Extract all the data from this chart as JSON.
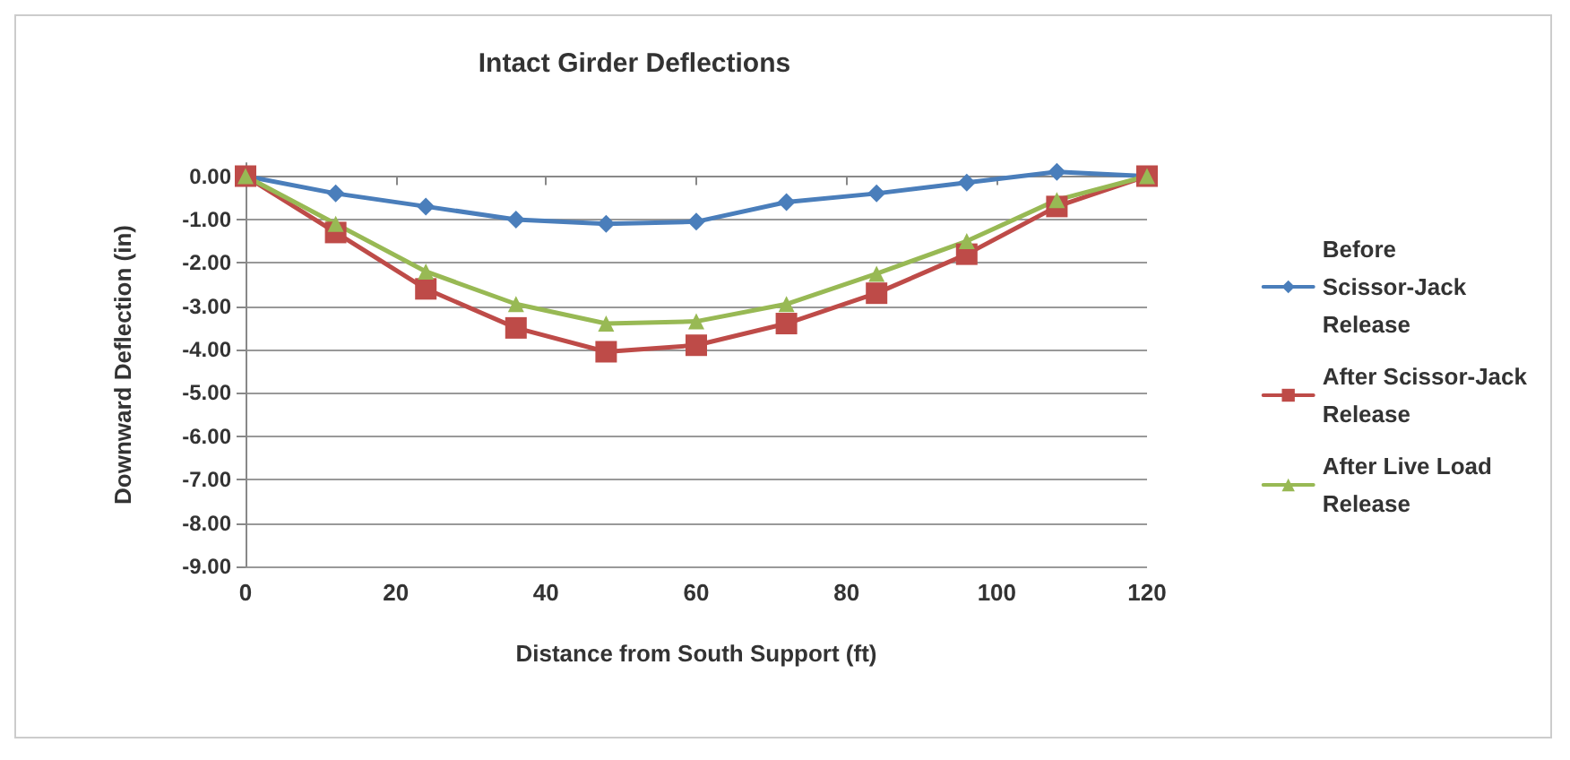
{
  "chart_data": {
    "type": "line",
    "title": "Intact Girder Deflections",
    "xlabel": "Distance from South Support (ft)",
    "ylabel": "Downward Deflection (in)",
    "x": [
      0,
      12,
      24,
      36,
      48,
      60,
      72,
      84,
      96,
      108,
      120
    ],
    "series": [
      {
        "name": "Before Scissor-Jack Release",
        "color": "#4a7ebb",
        "marker": "diamond",
        "values": [
          0,
          -0.4,
          -0.7,
          -1.0,
          -1.1,
          -1.05,
          -0.6,
          -0.4,
          -0.15,
          0.1,
          0
        ]
      },
      {
        "name": "After Scissor-Jack Release",
        "color": "#be4b48",
        "marker": "square",
        "values": [
          0,
          -1.3,
          -2.6,
          -3.5,
          -4.05,
          -3.9,
          -3.4,
          -2.7,
          -1.8,
          -0.7,
          0
        ]
      },
      {
        "name": "After Live Load Release",
        "color": "#98b954",
        "marker": "triangle",
        "values": [
          0,
          -1.1,
          -2.2,
          -2.95,
          -3.4,
          -3.35,
          -2.95,
          -2.25,
          -1.5,
          -0.55,
          0
        ]
      }
    ],
    "xlim": [
      0,
      120
    ],
    "xticks": [
      0,
      20,
      40,
      60,
      80,
      100,
      120
    ],
    "ylim": [
      -9,
      0.3
    ],
    "yticks": [
      {
        "value": 0,
        "label": "0.00"
      },
      {
        "value": -1,
        "label": "-1.00"
      },
      {
        "value": -2,
        "label": "-2.00"
      },
      {
        "value": -3,
        "label": "-3.00"
      },
      {
        "value": -4,
        "label": "-4.00"
      },
      {
        "value": -5,
        "label": "-5.00"
      },
      {
        "value": -6,
        "label": "-6.00"
      },
      {
        "value": -7,
        "label": "-7.00"
      },
      {
        "value": -8,
        "label": "-8.00"
      },
      {
        "value": -9,
        "label": "-9.00"
      }
    ],
    "grid": "y",
    "legend": "right",
    "line_style": "solid"
  }
}
